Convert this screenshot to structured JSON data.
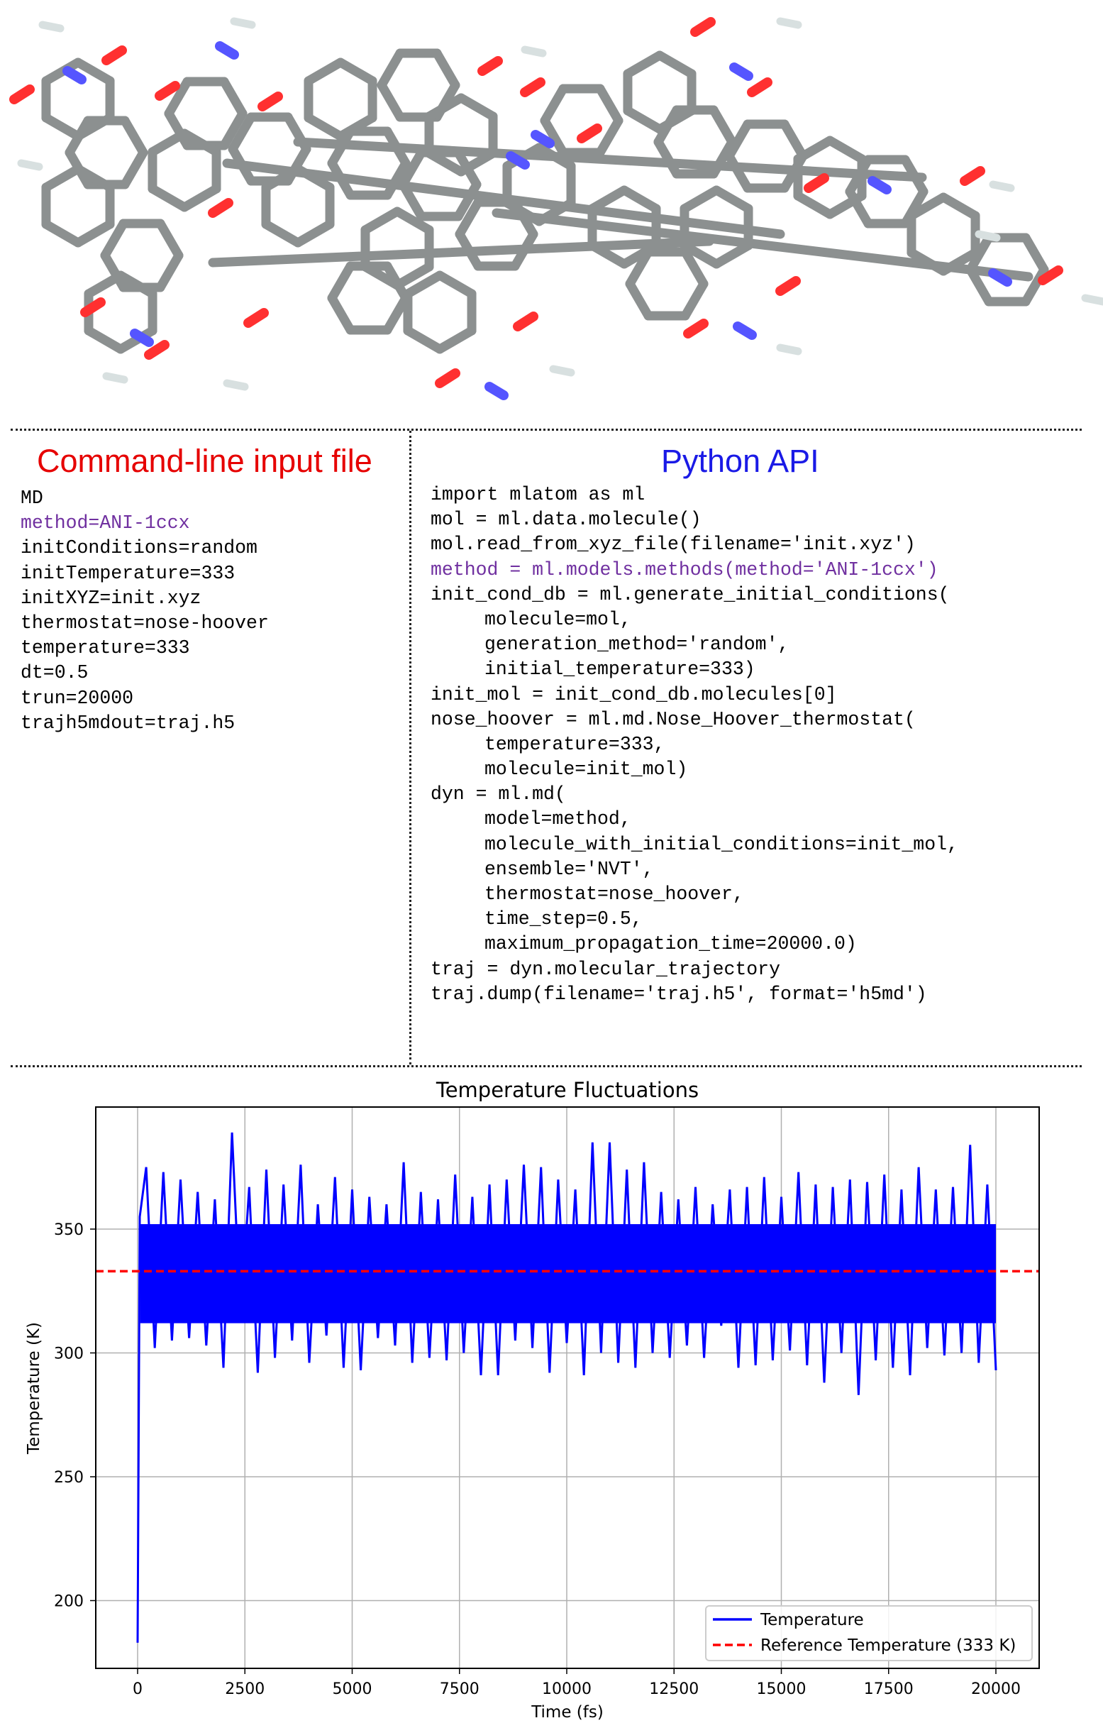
{
  "colors": {
    "cli_title": "#e60000",
    "python_title": "#1a1ae6",
    "highlight": "#7030a0",
    "temperature_line": "#0000ff",
    "reference_line": "#ff0000"
  },
  "molecule_image": {
    "icon": "molecule-3d-render"
  },
  "cli": {
    "title": "Command-line input file",
    "lines": [
      {
        "text": "MD"
      },
      {
        "text": "method=ANI-1ccx",
        "highlight": true
      },
      {
        "text": "initConditions=random"
      },
      {
        "text": "initTemperature=333"
      },
      {
        "text": "initXYZ=init.xyz"
      },
      {
        "text": "thermostat=nose-hoover"
      },
      {
        "text": "temperature=333"
      },
      {
        "text": "dt=0.5"
      },
      {
        "text": "trun=20000"
      },
      {
        "text": "trajh5mdout=traj.h5"
      }
    ]
  },
  "python": {
    "title": "Python API",
    "lines": [
      {
        "text": "import mlatom as ml"
      },
      {
        "text": "mol = ml.data.molecule()"
      },
      {
        "text": "mol.read_from_xyz_file(filename='init.xyz')"
      },
      {
        "text": "method = ml.models.methods(method='ANI-1ccx')",
        "highlight": true
      },
      {
        "text": "init_cond_db = ml.generate_initial_conditions("
      },
      {
        "text": "molecule=mol,",
        "indent": true
      },
      {
        "text": "generation_method='random',",
        "indent": true
      },
      {
        "text": "initial_temperature=333)",
        "indent": true
      },
      {
        "text": "init_mol = init_cond_db.molecules[0]"
      },
      {
        "text": "nose_hoover = ml.md.Nose_Hoover_thermostat("
      },
      {
        "text": "temperature=333,",
        "indent": true
      },
      {
        "text": "molecule=init_mol)",
        "indent": true
      },
      {
        "text": "dyn = ml.md("
      },
      {
        "text": "model=method,",
        "indent": true
      },
      {
        "text": "molecule_with_initial_conditions=init_mol,",
        "indent": true
      },
      {
        "text": "ensemble='NVT',",
        "indent": true
      },
      {
        "text": "thermostat=nose_hoover,",
        "indent": true
      },
      {
        "text": "time_step=0.5,",
        "indent": true
      },
      {
        "text": "maximum_propagation_time=20000.0)",
        "indent": true
      },
      {
        "text": "traj = dyn.molecular_trajectory"
      },
      {
        "text": "traj.dump(filename='traj.h5', format='h5md')"
      }
    ]
  },
  "chart_data": {
    "type": "line",
    "title": "Temperature Fluctuations",
    "xlabel": "Time (fs)",
    "ylabel": "Temperature (K)",
    "xlim": [
      -1000,
      21000
    ],
    "ylim": [
      173,
      399
    ],
    "xticks": [
      "0",
      "2500",
      "5000",
      "7500",
      "10000",
      "12500",
      "15000",
      "17500",
      "20000"
    ],
    "yticks": [
      "200",
      "250",
      "300",
      "350"
    ],
    "grid": true,
    "legend_position": "lower-right",
    "series": [
      {
        "name": "Temperature",
        "style": "solid",
        "x": [
          0,
          50,
          200,
          400,
          600,
          800,
          1000,
          1200,
          1400,
          1600,
          1800,
          2000,
          2200,
          2400,
          2600,
          2800,
          3000,
          3200,
          3400,
          3600,
          3800,
          4000,
          4200,
          4400,
          4600,
          4800,
          5000,
          5200,
          5400,
          5600,
          5800,
          6000,
          6200,
          6400,
          6600,
          6800,
          7000,
          7200,
          7400,
          7600,
          7800,
          8000,
          8200,
          8400,
          8600,
          8800,
          9000,
          9200,
          9400,
          9600,
          9800,
          10000,
          10200,
          10400,
          10600,
          10800,
          11000,
          11200,
          11400,
          11600,
          11800,
          12000,
          12200,
          12400,
          12600,
          12800,
          13000,
          13200,
          13400,
          13600,
          13800,
          14000,
          14200,
          14400,
          14600,
          14800,
          15000,
          15200,
          15400,
          15600,
          15800,
          16000,
          16200,
          16400,
          16600,
          16800,
          17000,
          17200,
          17400,
          17600,
          17800,
          18000,
          18200,
          18400,
          18600,
          18800,
          19000,
          19200,
          19400,
          19600,
          19800,
          20000
        ],
        "y": [
          183,
          355,
          375,
          302,
          373,
          305,
          370,
          306,
          365,
          303,
          362,
          294,
          389,
          313,
          367,
          292,
          374,
          298,
          368,
          305,
          376,
          296,
          360,
          307,
          371,
          294,
          366,
          293,
          363,
          306,
          360,
          303,
          377,
          296,
          365,
          298,
          362,
          297,
          372,
          300,
          363,
          291,
          368,
          291,
          370,
          305,
          376,
          302,
          375,
          292,
          370,
          304,
          366,
          291,
          385,
          300,
          385,
          296,
          374,
          294,
          377,
          300,
          365,
          298,
          362,
          303,
          367,
          298,
          360,
          311,
          366,
          294,
          367,
          295,
          371,
          297,
          363,
          301,
          373,
          295,
          368,
          288,
          367,
          300,
          370,
          283,
          369,
          297,
          372,
          294,
          366,
          291,
          375,
          302,
          366,
          299,
          367,
          300,
          384,
          296,
          368,
          293
        ]
      },
      {
        "name": "Reference Temperature (333 K)",
        "style": "dashed",
        "y_constant": 333
      }
    ]
  }
}
